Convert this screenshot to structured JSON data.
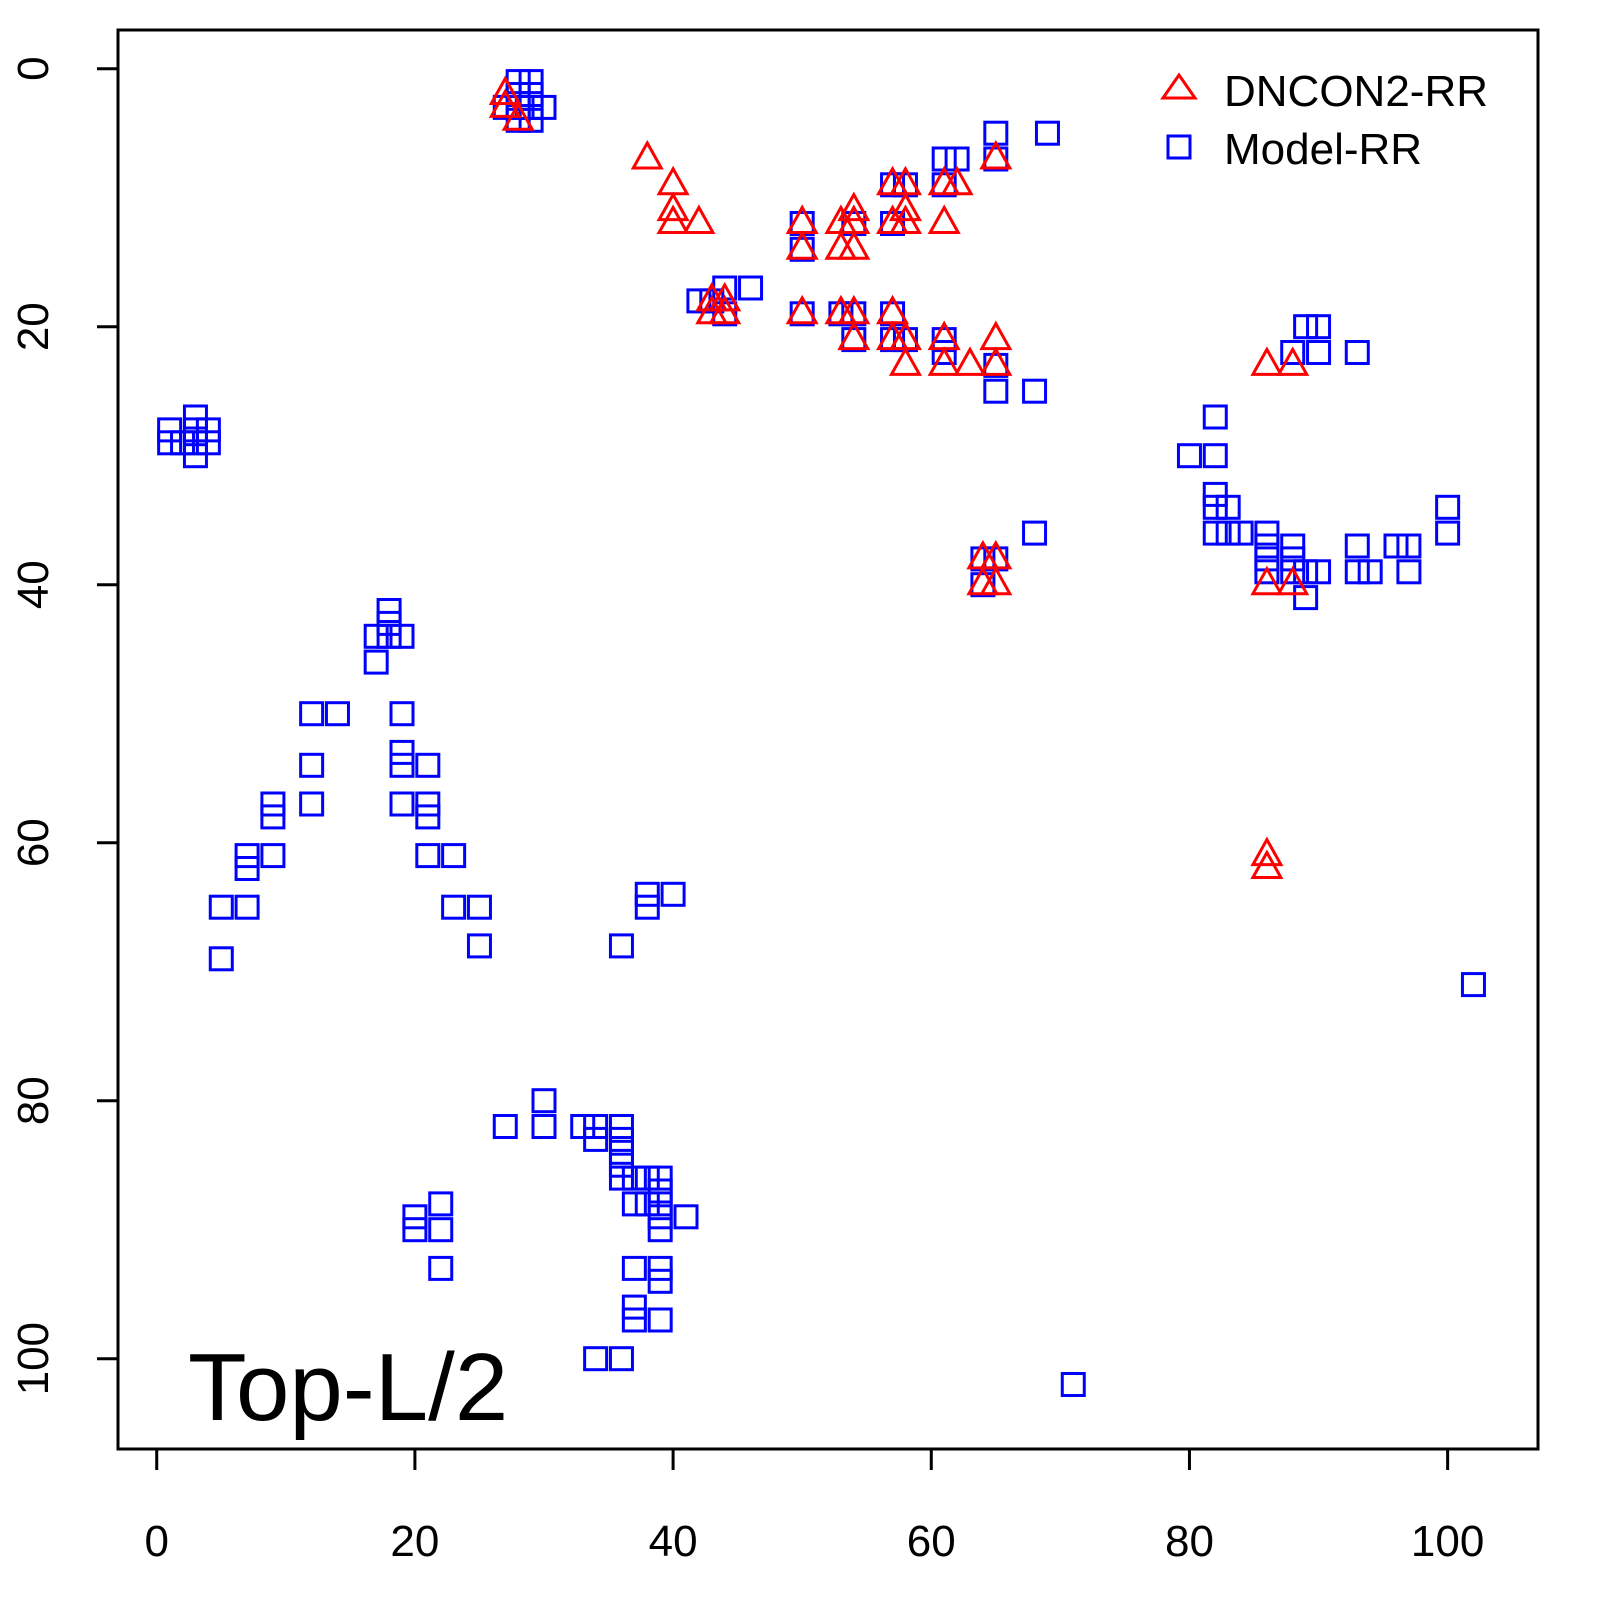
{
  "chart_data": {
    "type": "scatter",
    "title": "",
    "annotation": "Top-L/2",
    "xlabel": "",
    "ylabel": "",
    "xlim": [
      -3,
      107
    ],
    "ylim": [
      107,
      -3
    ],
    "y_reversed": true,
    "grid": false,
    "legend_position": "top-right",
    "x_ticks": [
      0,
      20,
      40,
      60,
      80,
      100
    ],
    "y_ticks": [
      0,
      20,
      40,
      60,
      80,
      100
    ],
    "x_tick_labels": [
      "0",
      "20",
      "40",
      "60",
      "80",
      "100"
    ],
    "y_tick_labels": [
      "0",
      "20",
      "40",
      "60",
      "80",
      "100"
    ],
    "series": [
      {
        "name": "DNCON2-RR",
        "marker": "triangle",
        "color": "#ff0000",
        "points": [
          [
            27,
            2
          ],
          [
            27,
            3
          ],
          [
            28,
            4
          ],
          [
            38,
            7
          ],
          [
            40,
            9
          ],
          [
            40,
            11
          ],
          [
            40,
            12
          ],
          [
            42,
            12
          ],
          [
            50,
            12
          ],
          [
            50,
            14
          ],
          [
            53,
            12
          ],
          [
            53,
            14
          ],
          [
            54,
            11
          ],
          [
            54,
            14
          ],
          [
            54,
            12
          ],
          [
            57,
            9
          ],
          [
            58,
            9
          ],
          [
            57,
            12
          ],
          [
            58,
            11
          ],
          [
            58,
            12
          ],
          [
            61,
            9
          ],
          [
            61,
            12
          ],
          [
            62,
            9
          ],
          [
            65,
            7
          ],
          [
            43,
            18
          ],
          [
            44,
            18
          ],
          [
            43,
            19
          ],
          [
            44,
            19
          ],
          [
            50,
            19
          ],
          [
            53,
            19
          ],
          [
            54,
            19
          ],
          [
            54,
            21
          ],
          [
            57,
            19
          ],
          [
            57,
            21
          ],
          [
            58,
            21
          ],
          [
            58,
            23
          ],
          [
            61,
            21
          ],
          [
            61,
            23
          ],
          [
            63,
            23
          ],
          [
            65,
            21
          ],
          [
            65,
            23
          ],
          [
            64,
            38
          ],
          [
            65,
            38
          ],
          [
            64,
            40
          ],
          [
            65,
            40
          ],
          [
            86,
            23
          ],
          [
            88,
            23
          ],
          [
            86,
            40
          ],
          [
            88,
            40
          ],
          [
            86,
            61
          ],
          [
            86,
            62
          ]
        ]
      },
      {
        "name": "Model-RR",
        "marker": "square",
        "color": "#0000ff",
        "points": [
          [
            28,
            1
          ],
          [
            29,
            1
          ],
          [
            28,
            2
          ],
          [
            29,
            2
          ],
          [
            27,
            3
          ],
          [
            28,
            3
          ],
          [
            29,
            3
          ],
          [
            30,
            3
          ],
          [
            28,
            4
          ],
          [
            29,
            4
          ],
          [
            65,
            5
          ],
          [
            69,
            5
          ],
          [
            61,
            7
          ],
          [
            62,
            7
          ],
          [
            65,
            7
          ],
          [
            57,
            9
          ],
          [
            58,
            9
          ],
          [
            61,
            9
          ],
          [
            50,
            12
          ],
          [
            54,
            12
          ],
          [
            57,
            12
          ],
          [
            50,
            14
          ],
          [
            42,
            18
          ],
          [
            43,
            18
          ],
          [
            44,
            17
          ],
          [
            46,
            17
          ],
          [
            44,
            19
          ],
          [
            50,
            19
          ],
          [
            53,
            19
          ],
          [
            54,
            19
          ],
          [
            54,
            21
          ],
          [
            57,
            19
          ],
          [
            57,
            21
          ],
          [
            58,
            21
          ],
          [
            61,
            21
          ],
          [
            61,
            22
          ],
          [
            65,
            23
          ],
          [
            65,
            25
          ],
          [
            68,
            25
          ],
          [
            89,
            20
          ],
          [
            90,
            20
          ],
          [
            88,
            22
          ],
          [
            90,
            22
          ],
          [
            93,
            22
          ],
          [
            1,
            28
          ],
          [
            1,
            29
          ],
          [
            2,
            29
          ],
          [
            3,
            27
          ],
          [
            3,
            28
          ],
          [
            3,
            29
          ],
          [
            3,
            30
          ],
          [
            4,
            28
          ],
          [
            4,
            29
          ],
          [
            82,
            27
          ],
          [
            80,
            30
          ],
          [
            82,
            30
          ],
          [
            82,
            33
          ],
          [
            82,
            34
          ],
          [
            83,
            34
          ],
          [
            82,
            36
          ],
          [
            83,
            36
          ],
          [
            84,
            36
          ],
          [
            86,
            36
          ],
          [
            86,
            37
          ],
          [
            86,
            38
          ],
          [
            86,
            39
          ],
          [
            88,
            37
          ],
          [
            88,
            38
          ],
          [
            88,
            39
          ],
          [
            89,
            39
          ],
          [
            89,
            41
          ],
          [
            90,
            39
          ],
          [
            93,
            37
          ],
          [
            93,
            39
          ],
          [
            94,
            39
          ],
          [
            96,
            37
          ],
          [
            97,
            37
          ],
          [
            97,
            39
          ],
          [
            100,
            34
          ],
          [
            100,
            36
          ],
          [
            68,
            36
          ],
          [
            64,
            38
          ],
          [
            65,
            38
          ],
          [
            64,
            40
          ],
          [
            18,
            42
          ],
          [
            18,
            43
          ],
          [
            17,
            44
          ],
          [
            18,
            44
          ],
          [
            19,
            44
          ],
          [
            17,
            46
          ],
          [
            12,
            50
          ],
          [
            14,
            50
          ],
          [
            19,
            50
          ],
          [
            19,
            53
          ],
          [
            19,
            54
          ],
          [
            21,
            54
          ],
          [
            12,
            54
          ],
          [
            12,
            57
          ],
          [
            19,
            57
          ],
          [
            21,
            57
          ],
          [
            21,
            58
          ],
          [
            9,
            57
          ],
          [
            9,
            58
          ],
          [
            9,
            61
          ],
          [
            7,
            61
          ],
          [
            7,
            62
          ],
          [
            21,
            61
          ],
          [
            23,
            61
          ],
          [
            5,
            65
          ],
          [
            7,
            65
          ],
          [
            23,
            65
          ],
          [
            25,
            65
          ],
          [
            5,
            69
          ],
          [
            25,
            68
          ],
          [
            36,
            68
          ],
          [
            38,
            64
          ],
          [
            38,
            65
          ],
          [
            40,
            64
          ],
          [
            102,
            71
          ],
          [
            30,
            80
          ],
          [
            27,
            82
          ],
          [
            30,
            82
          ],
          [
            33,
            82
          ],
          [
            34,
            82
          ],
          [
            34,
            83
          ],
          [
            36,
            82
          ],
          [
            36,
            83
          ],
          [
            36,
            84
          ],
          [
            36,
            85
          ],
          [
            36,
            86
          ],
          [
            37,
            86
          ],
          [
            38,
            86
          ],
          [
            39,
            86
          ],
          [
            39,
            87
          ],
          [
            39,
            88
          ],
          [
            37,
            88
          ],
          [
            38,
            88
          ],
          [
            39,
            89
          ],
          [
            39,
            90
          ],
          [
            41,
            89
          ],
          [
            37,
            93
          ],
          [
            39,
            93
          ],
          [
            39,
            94
          ],
          [
            37,
            96
          ],
          [
            37,
            97
          ],
          [
            39,
            97
          ],
          [
            20,
            89
          ],
          [
            20,
            90
          ],
          [
            22,
            88
          ],
          [
            22,
            90
          ],
          [
            22,
            93
          ],
          [
            34,
            100
          ],
          [
            36,
            100
          ],
          [
            71,
            102
          ]
        ]
      }
    ]
  }
}
